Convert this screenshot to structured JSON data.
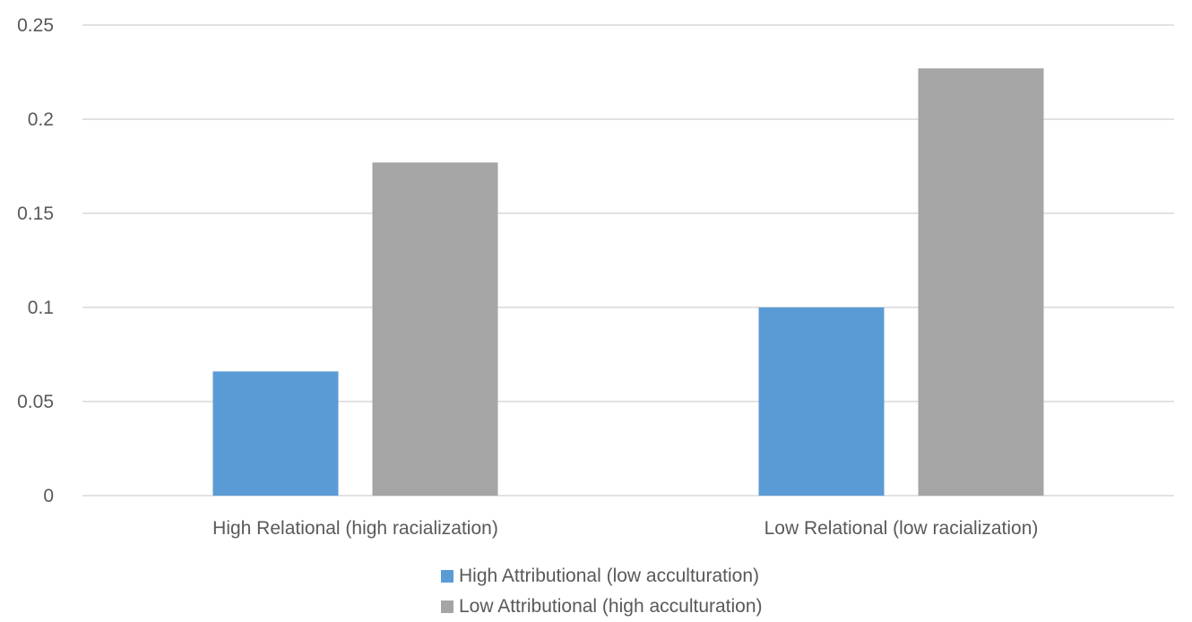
{
  "chart_data": {
    "type": "bar",
    "title": "",
    "xlabel": "",
    "ylabel": "",
    "categories": [
      "High Relational (high racialization)",
      "Low Relational (low racialization)"
    ],
    "series": [
      {
        "name": "High Attributional (low acculturation)",
        "color": "#5B9BD5",
        "values": [
          0.066,
          0.1
        ]
      },
      {
        "name": "Low Attributional (high acculturation)",
        "color": "#A5A5A5",
        "values": [
          0.177,
          0.227
        ]
      }
    ],
    "ylim": [
      0,
      0.25
    ],
    "yticks": [
      "0",
      "0.05",
      "0.1",
      "0.15",
      "0.2",
      "0.25"
    ],
    "grid": true,
    "legend_position": "bottom"
  }
}
